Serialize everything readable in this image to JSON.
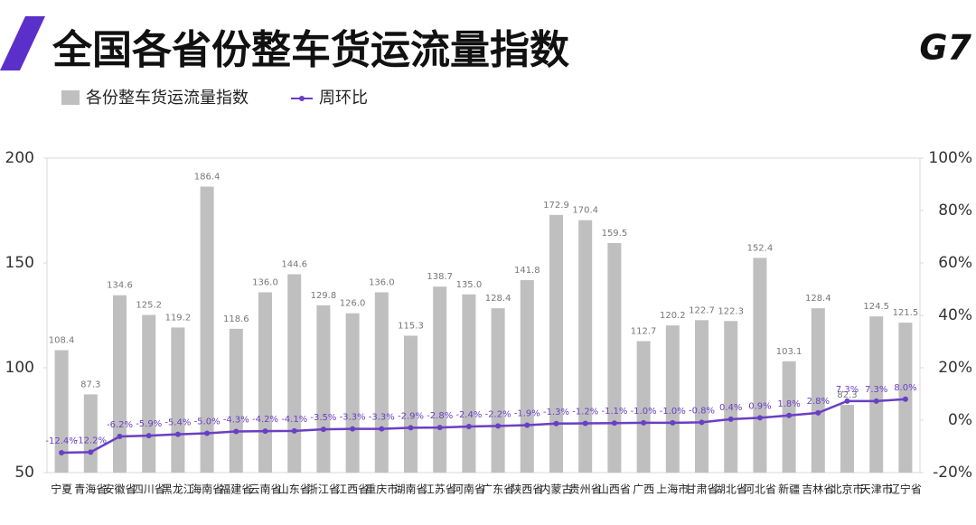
{
  "header": {
    "title": "全国各省份整车货运流量指数",
    "logo": "G7"
  },
  "chart_data": {
    "type": "bar",
    "categories": [
      "宁夏",
      "青海省",
      "安徽省",
      "四川省",
      "黑龙江",
      "海南省",
      "福建省",
      "云南省",
      "山东省",
      "浙江省",
      "江西省",
      "重庆市",
      "湖南省",
      "江苏省",
      "河南省",
      "广东省",
      "陕西省",
      "内蒙古",
      "贵州省",
      "山西省",
      "广西",
      "上海市",
      "甘肃省",
      "湖北省",
      "河北省",
      "新疆",
      "吉林省",
      "北京市",
      "天津市",
      "辽宁省"
    ],
    "series": [
      {
        "name": "各份整车货运流量指数",
        "type": "bar",
        "color": "#bfbfbf",
        "values": [
          108.4,
          87.3,
          134.6,
          125.2,
          119.2,
          186.4,
          118.6,
          136.0,
          144.6,
          129.8,
          126.0,
          136.0,
          115.3,
          138.7,
          135.0,
          128.4,
          141.8,
          172.9,
          170.4,
          159.5,
          112.7,
          120.2,
          122.7,
          122.3,
          152.4,
          103.1,
          128.4,
          82.3,
          124.5,
          121.5
        ],
        "value_labels": [
          "108.4",
          "87.3",
          "134.6",
          "125.2",
          "119.2",
          "186.4",
          "118.6",
          "136.0",
          "144.6",
          "129.8",
          "126.0",
          "136.0",
          "115.3",
          "138.7",
          "135.0",
          "128.4",
          "141.8",
          "172.9",
          "170.4",
          "159.5",
          "112.7",
          "120.2",
          "122.7",
          "122.3",
          "152.4",
          "103.1",
          "128.4",
          "82.3",
          "124.5",
          "121.5"
        ]
      },
      {
        "name": "周环比",
        "type": "line",
        "axis": "y2",
        "color": "#6a3fc4",
        "values": [
          -12.4,
          -12.2,
          -6.2,
          -5.9,
          -5.4,
          -5.0,
          -4.3,
          -4.2,
          -4.1,
          -3.5,
          -3.3,
          -3.3,
          -2.9,
          -2.8,
          -2.4,
          -2.2,
          -1.9,
          -1.3,
          -1.2,
          -1.1,
          -1.0,
          -1.0,
          -0.8,
          0.4,
          0.9,
          1.8,
          2.8,
          7.3,
          7.3,
          8.0
        ],
        "value_labels": [
          "-12.4%",
          "-12.2%",
          "-6.2%",
          "-5.9%",
          "-5.4%",
          "-5.0%",
          "-4.3%",
          "-4.2%",
          "-4.1%",
          "-3.5%",
          "-3.3%",
          "-3.3%",
          "-2.9%",
          "-2.8%",
          "-2.4%",
          "-2.2%",
          "-1.9%",
          "-1.3%",
          "-1.2%",
          "-1.1%",
          "-1.0%",
          "-1.0%",
          "-0.8%",
          "0.4%",
          "0.9%",
          "1.8%",
          "2.8%",
          "7.3%",
          "7.3%",
          "8.0%"
        ]
      }
    ],
    "ylim": [
      50,
      200
    ],
    "yticks": [
      50,
      100,
      150,
      200
    ],
    "y2lim": [
      -20,
      100
    ],
    "y2ticks": [
      {
        "value": -20,
        "label": "-20%"
      },
      {
        "value": 0,
        "label": "0%"
      },
      {
        "value": 20,
        "label": "20%"
      },
      {
        "value": 40,
        "label": "40%"
      },
      {
        "value": 60,
        "label": "60%"
      },
      {
        "value": 80,
        "label": "80%"
      },
      {
        "value": 100,
        "label": "100%"
      }
    ]
  }
}
